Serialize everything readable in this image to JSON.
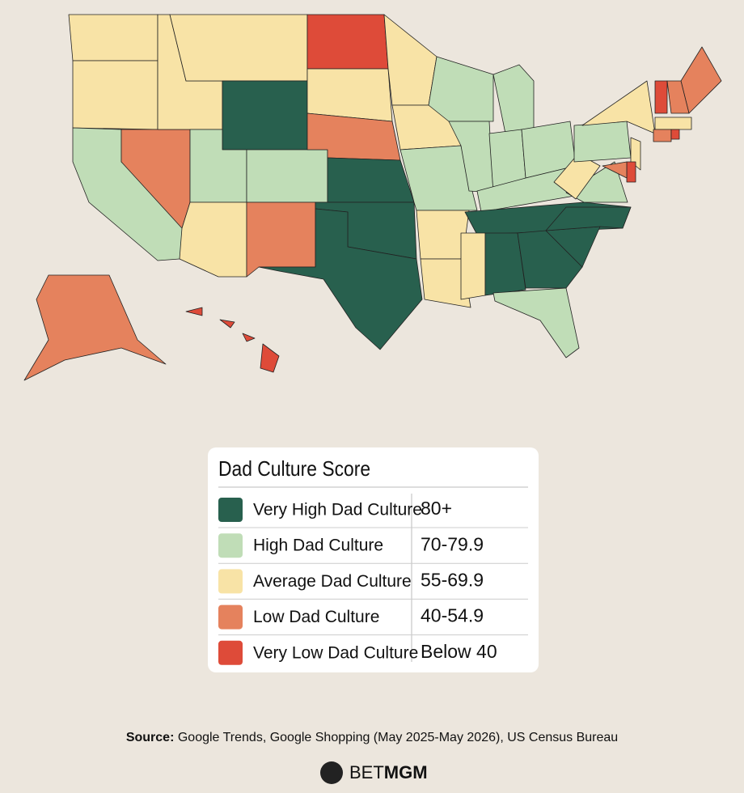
{
  "legend": {
    "title": "Dad Culture Score",
    "items": [
      {
        "label": "Very High Dad Culture",
        "range": "80+",
        "color": "#28604e"
      },
      {
        "label": "High Dad Culture",
        "range": "70-79.9",
        "color": "#c0ddb7"
      },
      {
        "label": "Average Dad Culture",
        "range": "55-69.9",
        "color": "#f8e3a6"
      },
      {
        "label": "Low Dad Culture",
        "range": "40-54.9",
        "color": "#e5825d"
      },
      {
        "label": "Very Low Dad Culture",
        "range": "Below 40",
        "color": "#de4b39"
      }
    ]
  },
  "source": {
    "label": "Source:",
    "text": "Google Trends, Google Shopping (May 2025-May 2026), US Census Bureau"
  },
  "logo": {
    "prefix": "BET",
    "suffix": "MGM"
  }
}
